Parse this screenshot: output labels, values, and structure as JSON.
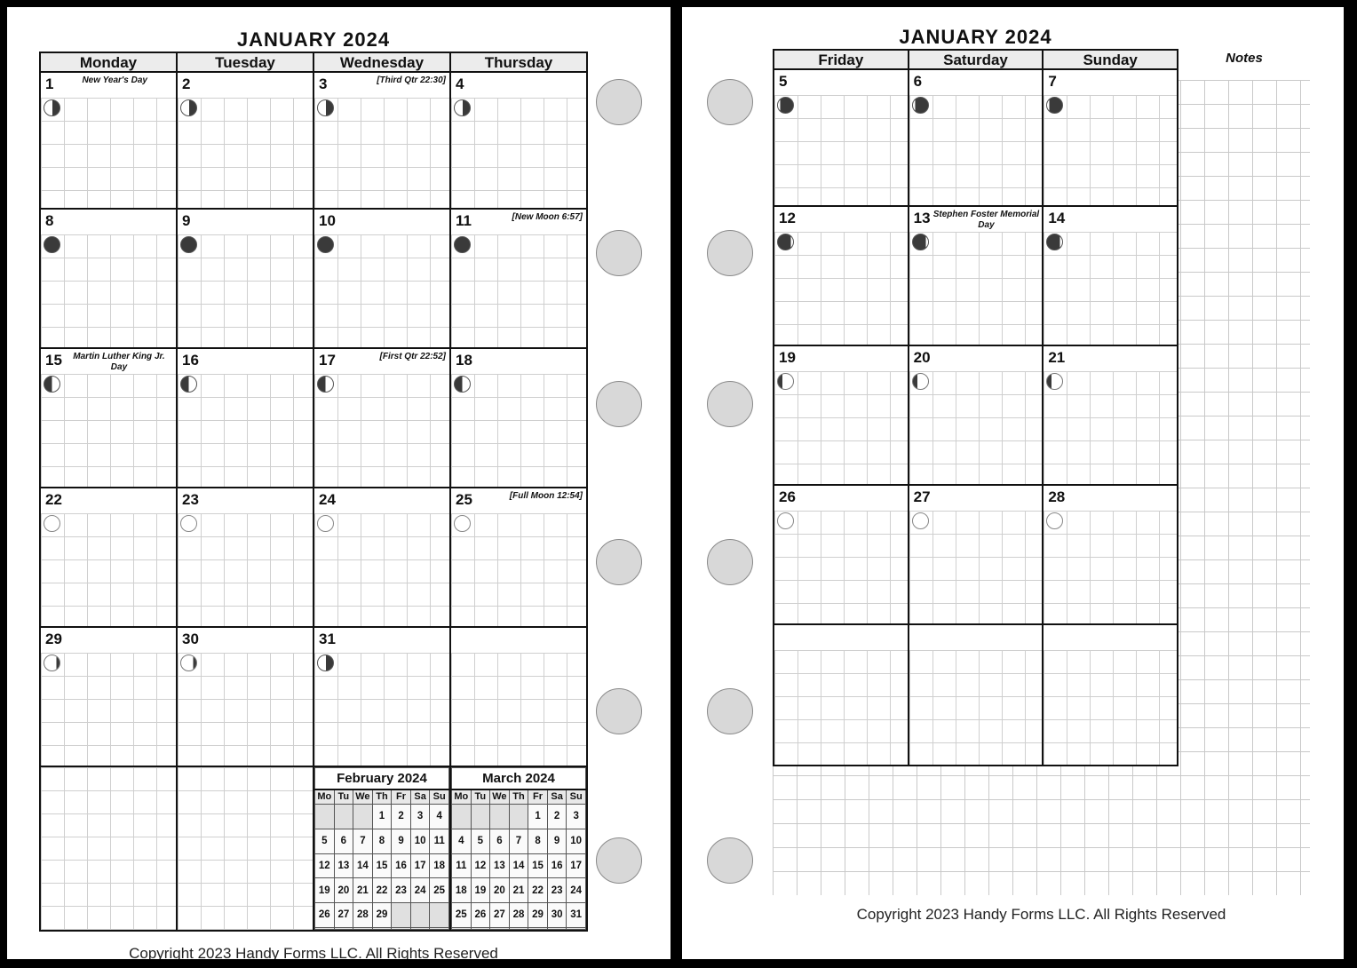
{
  "page_left": {
    "title": "JANUARY 2024",
    "weekday_headers": [
      "Monday",
      "Tuesday",
      "Wednesday",
      "Thursday"
    ],
    "weeks": [
      [
        {
          "day": "1",
          "note": "New Year's Day",
          "moon_phase": "third_quarter"
        },
        {
          "day": "2",
          "moon_phase": "third_quarter"
        },
        {
          "day": "3",
          "note": "[Third Qtr 22:30]",
          "moon_phase": "third_quarter"
        },
        {
          "day": "4",
          "moon_phase": "third_quarter"
        }
      ],
      [
        {
          "day": "8",
          "moon_phase": "new_moon"
        },
        {
          "day": "9",
          "moon_phase": "new_moon"
        },
        {
          "day": "10",
          "moon_phase": "new_moon"
        },
        {
          "day": "11",
          "note": "[New Moon 6:57]",
          "moon_phase": "new_moon"
        }
      ],
      [
        {
          "day": "15",
          "note": "Martin Luther King Jr. Day",
          "moon_phase": "first_quarter"
        },
        {
          "day": "16",
          "moon_phase": "first_quarter"
        },
        {
          "day": "17",
          "note": "[First Qtr 22:52]",
          "moon_phase": "first_quarter"
        },
        {
          "day": "18",
          "moon_phase": "first_quarter"
        }
      ],
      [
        {
          "day": "22",
          "moon_phase": "full_moon"
        },
        {
          "day": "23",
          "moon_phase": "full_moon"
        },
        {
          "day": "24",
          "moon_phase": "full_moon"
        },
        {
          "day": "25",
          "note": "[Full Moon 12:54]",
          "moon_phase": "full_moon"
        }
      ],
      [
        {
          "day": "29",
          "moon_phase": "waning_gibbous"
        },
        {
          "day": "30",
          "moon_phase": "waning_gibbous"
        },
        {
          "day": "31",
          "moon_phase": "third_quarter"
        },
        {
          "day": ""
        }
      ]
    ],
    "mini_calendars": [
      {
        "title": "February 2024",
        "day_headers": [
          "Mo",
          "Tu",
          "We",
          "Th",
          "Fr",
          "Sa",
          "Su"
        ],
        "rows": [
          [
            "",
            "",
            "",
            "1",
            "2",
            "3",
            "4"
          ],
          [
            "5",
            "6",
            "7",
            "8",
            "9",
            "10",
            "11"
          ],
          [
            "12",
            "13",
            "14",
            "15",
            "16",
            "17",
            "18"
          ],
          [
            "19",
            "20",
            "21",
            "22",
            "23",
            "24",
            "25"
          ],
          [
            "26",
            "27",
            "28",
            "29",
            "",
            "",
            ""
          ],
          [
            "",
            "",
            "",
            "",
            "",
            "",
            ""
          ]
        ]
      },
      {
        "title": "March 2024",
        "day_headers": [
          "Mo",
          "Tu",
          "We",
          "Th",
          "Fr",
          "Sa",
          "Su"
        ],
        "rows": [
          [
            "",
            "",
            "",
            "",
            "1",
            "2",
            "3"
          ],
          [
            "4",
            "5",
            "6",
            "7",
            "8",
            "9",
            "10"
          ],
          [
            "11",
            "12",
            "13",
            "14",
            "15",
            "16",
            "17"
          ],
          [
            "18",
            "19",
            "20",
            "21",
            "22",
            "23",
            "24"
          ],
          [
            "25",
            "26",
            "27",
            "28",
            "29",
            "30",
            "31"
          ],
          [
            "",
            "",
            "",
            "",
            "",
            "",
            ""
          ]
        ]
      }
    ],
    "copyright": "Copyright 2023 Handy Forms LLC. All Rights Reserved"
  },
  "page_right": {
    "title": "JANUARY 2024",
    "weekday_headers": [
      "Friday",
      "Saturday",
      "Sunday"
    ],
    "notes_label": "Notes",
    "weeks": [
      [
        {
          "day": "5",
          "moon_phase": "waning_crescent"
        },
        {
          "day": "6",
          "moon_phase": "waning_crescent"
        },
        {
          "day": "7",
          "moon_phase": "waning_crescent"
        }
      ],
      [
        {
          "day": "12",
          "moon_phase": "waxing_crescent"
        },
        {
          "day": "13",
          "note": "Stephen Foster Memorial Day",
          "moon_phase": "waxing_crescent"
        },
        {
          "day": "14",
          "moon_phase": "waxing_crescent"
        }
      ],
      [
        {
          "day": "19",
          "moon_phase": "waxing_gibbous"
        },
        {
          "day": "20",
          "moon_phase": "waxing_gibbous"
        },
        {
          "day": "21",
          "moon_phase": "waxing_gibbous"
        }
      ],
      [
        {
          "day": "26",
          "moon_phase": "full_moon"
        },
        {
          "day": "27",
          "moon_phase": "full_moon"
        },
        {
          "day": "28",
          "moon_phase": "full_moon"
        }
      ],
      [
        {
          "day": ""
        },
        {
          "day": ""
        },
        {
          "day": ""
        }
      ]
    ],
    "copyright": "Copyright 2023 Handy Forms LLC. All Rights Reserved"
  }
}
